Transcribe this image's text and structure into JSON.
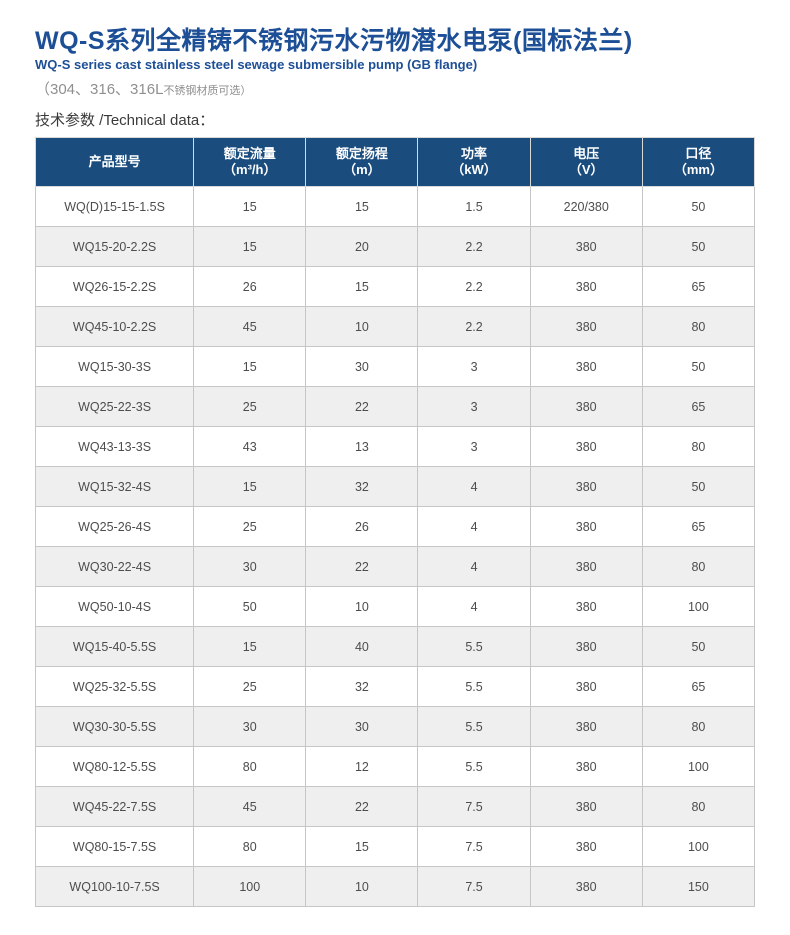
{
  "header": {
    "title": "WQ-S系列全精铸不锈钢污水污物潜水电泵(国标法兰)",
    "subtitle": "WQ-S series cast stainless steel sewage submersible pump (GB flange)",
    "material_note": {
      "main": "（304、316、316L",
      "small": "不锈钢材质可选）"
    },
    "section_label": "技术参数 /Technical data："
  },
  "colors": {
    "brand_blue": "#1d4f96",
    "table_header_bg": "#1a4c7e",
    "row_alt_bg": "#efefef",
    "grid_border": "#c6c6c6",
    "cell_text": "#4d4d4d",
    "note_gray": "#8f8f8f"
  },
  "table": {
    "columns": [
      {
        "label": "产品型号",
        "sub": ""
      },
      {
        "label": "额定流量",
        "sub": "（m³/h）"
      },
      {
        "label": "额定扬程",
        "sub": "（m）"
      },
      {
        "label": "功率",
        "sub": "（kW）"
      },
      {
        "label": "电压",
        "sub": "（V）"
      },
      {
        "label": "口径",
        "sub": "（mm）"
      }
    ],
    "rows": [
      [
        "WQ(D)15-15-1.5S",
        "15",
        "15",
        "1.5",
        "220/380",
        "50"
      ],
      [
        "WQ15-20-2.2S",
        "15",
        "20",
        "2.2",
        "380",
        "50"
      ],
      [
        "WQ26-15-2.2S",
        "26",
        "15",
        "2.2",
        "380",
        "65"
      ],
      [
        "WQ45-10-2.2S",
        "45",
        "10",
        "2.2",
        "380",
        "80"
      ],
      [
        "WQ15-30-3S",
        "15",
        "30",
        "3",
        "380",
        "50"
      ],
      [
        "WQ25-22-3S",
        "25",
        "22",
        "3",
        "380",
        "65"
      ],
      [
        "WQ43-13-3S",
        "43",
        "13",
        "3",
        "380",
        "80"
      ],
      [
        "WQ15-32-4S",
        "15",
        "32",
        "4",
        "380",
        "50"
      ],
      [
        "WQ25-26-4S",
        "25",
        "26",
        "4",
        "380",
        "65"
      ],
      [
        "WQ30-22-4S",
        "30",
        "22",
        "4",
        "380",
        "80"
      ],
      [
        "WQ50-10-4S",
        "50",
        "10",
        "4",
        "380",
        "100"
      ],
      [
        "WQ15-40-5.5S",
        "15",
        "40",
        "5.5",
        "380",
        "50"
      ],
      [
        "WQ25-32-5.5S",
        "25",
        "32",
        "5.5",
        "380",
        "65"
      ],
      [
        "WQ30-30-5.5S",
        "30",
        "30",
        "5.5",
        "380",
        "80"
      ],
      [
        "WQ80-12-5.5S",
        "80",
        "12",
        "5.5",
        "380",
        "100"
      ],
      [
        "WQ45-22-7.5S",
        "45",
        "22",
        "7.5",
        "380",
        "80"
      ],
      [
        "WQ80-15-7.5S",
        "80",
        "15",
        "7.5",
        "380",
        "100"
      ],
      [
        "WQ100-10-7.5S",
        "100",
        "10",
        "7.5",
        "380",
        "150"
      ]
    ]
  }
}
